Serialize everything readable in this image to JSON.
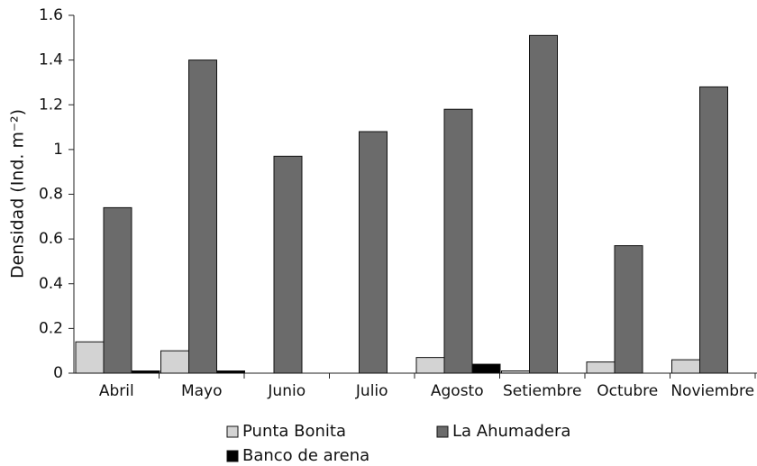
{
  "chart_data": {
    "type": "bar",
    "y_label": "Densidad (Ind. m⁻²)",
    "categories": [
      "Abril",
      "Mayo",
      "Junio",
      "Julio",
      "Agosto",
      "Setiembre",
      "Octubre",
      "Noviembre"
    ],
    "series": [
      {
        "name": "Punta Bonita",
        "color": "#d3d3d3",
        "values": [
          0.14,
          0.1,
          0,
          0,
          0.07,
          0.01,
          0.05,
          0.06
        ]
      },
      {
        "name": "La Ahumadera",
        "color": "#6b6b6b",
        "values": [
          0.74,
          1.4,
          0.97,
          1.08,
          1.18,
          1.51,
          0.57,
          1.28
        ]
      },
      {
        "name": "Banco de arena",
        "color": "#000000",
        "values": [
          0.01,
          0.01,
          0,
          0,
          0.04,
          0,
          0,
          0
        ]
      }
    ],
    "ylim": [
      0,
      1.6
    ],
    "yticks": [
      0,
      0.2,
      0.4,
      0.6,
      0.8,
      1,
      1.2,
      1.4,
      1.6
    ]
  }
}
